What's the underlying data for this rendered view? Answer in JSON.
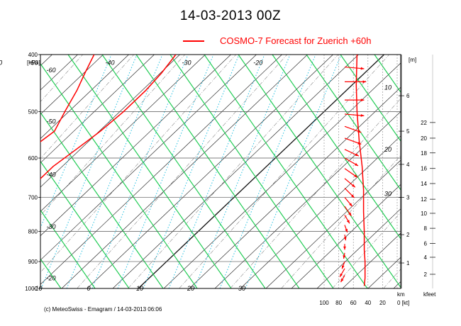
{
  "title": "14-03-2013  00Z",
  "legend": {
    "label": "COSMO-7 Forecast for Zuerich   +60h",
    "color": "#ff0000"
  },
  "footer": "(c) MeteoSwiss - Emagram  /  14-03-2013  06:06",
  "chart_data": {
    "type": "line",
    "title": "14-03-2013  00Z",
    "ylabel": "[hPa]",
    "yscale": "log",
    "ylim": [
      1000,
      400
    ],
    "pressure_ticks": [
      "400",
      "500",
      "600",
      "700",
      "800",
      "900",
      "1000"
    ],
    "pressure_values": [
      400,
      500,
      600,
      700,
      800,
      900,
      1000
    ],
    "height_unit": "[m]",
    "height_ticks_m": [
      {
        "p": 905,
        "label": "1"
      },
      {
        "p": 810,
        "label": "2"
      },
      {
        "p": 700,
        "label": "3"
      },
      {
        "p": 615,
        "label": "4"
      },
      {
        "p": 540,
        "label": "5"
      },
      {
        "p": 470,
        "label": "6"
      }
    ],
    "kfeet_unit": "kfeet",
    "kfeet_ticks": [
      {
        "p": 946,
        "label": "2"
      },
      {
        "p": 885,
        "label": "4"
      },
      {
        "p": 838,
        "label": "6"
      },
      {
        "p": 790,
        "label": "8"
      },
      {
        "p": 745,
        "label": "10"
      },
      {
        "p": 705,
        "label": "12"
      },
      {
        "p": 663,
        "label": "14"
      },
      {
        "p": 625,
        "label": "16"
      },
      {
        "p": 588,
        "label": "18"
      },
      {
        "p": 555,
        "label": "20"
      },
      {
        "p": 522,
        "label": "22"
      }
    ],
    "wind_speed_ticks": [
      "100",
      "80",
      "60",
      "40",
      "20",
      "0 [kt]"
    ],
    "wind_speed_values": [
      100,
      80,
      60,
      40,
      20,
      0
    ],
    "wind_axis_label": "km",
    "isotherm_labels": [
      {
        "label": "-60",
        "p": 413,
        "t": -74
      },
      {
        "label": "-50",
        "p": 413,
        "t": -67
      },
      {
        "label": "-40",
        "p": 413,
        "t": -52
      },
      {
        "label": "-30",
        "p": 413,
        "t": -37
      },
      {
        "label": "-20",
        "p": 413,
        "t": -23
      }
    ],
    "bottom_iso_labels": [
      {
        "label": "-10",
        "p": 1000,
        "t": -10
      },
      {
        "label": "0",
        "p": 1000,
        "t": 0
      },
      {
        "label": "10",
        "p": 1000,
        "t": 10
      },
      {
        "label": "20",
        "p": 1000,
        "t": 20
      },
      {
        "label": "30",
        "p": 1000,
        "t": 30
      }
    ],
    "left_iso_labels": [
      {
        "label": "-60",
        "p": 425,
        "t": -76
      },
      {
        "label": "-50",
        "p": 520,
        "t": -75
      },
      {
        "label": "-40",
        "p": 640,
        "t": -74
      },
      {
        "label": "-30",
        "p": 785,
        "t": -73
      },
      {
        "label": "-20",
        "p": 960,
        "t": -72
      }
    ],
    "mixing_ratio_labels": [
      {
        "label": "10",
        "p": 455,
        "t": -9
      },
      {
        "label": "20",
        "p": 580,
        "t": -7
      },
      {
        "label": "30",
        "p": 690,
        "t": -6
      }
    ],
    "series": [
      {
        "name": "temperature",
        "color": "#ff0000",
        "points": [
          [
            -38,
            400
          ],
          [
            -37,
            430
          ],
          [
            -36.5,
            460
          ],
          [
            -36.5,
            500
          ],
          [
            -37,
            540
          ],
          [
            -38,
            580
          ],
          [
            -39,
            620
          ],
          [
            -39,
            650
          ],
          [
            -38.5,
            700
          ],
          [
            -38,
            750
          ],
          [
            -37.5,
            800
          ],
          [
            -37,
            860
          ],
          [
            -36,
            880
          ],
          [
            -35,
            900
          ],
          [
            -36.5,
            920
          ],
          [
            -36,
            935
          ],
          [
            -35,
            945
          ]
        ]
      },
      {
        "name": "dewpoint",
        "color": "#ff0000",
        "points": [
          [
            -54,
            400
          ],
          [
            -52,
            430
          ],
          [
            -50,
            460
          ],
          [
            -48,
            500
          ],
          [
            -46,
            540
          ],
          [
            -47,
            580
          ],
          [
            -51,
            620
          ],
          [
            -58,
            660
          ],
          [
            -64,
            700
          ],
          [
            -68,
            740
          ],
          [
            -69,
            780
          ],
          [
            -68,
            820
          ],
          [
            -65,
            860
          ],
          [
            -60,
            890
          ],
          [
            -58,
            910
          ],
          [
            -52,
            920
          ],
          [
            -50,
            940
          ],
          [
            -48,
            945
          ]
        ]
      }
    ],
    "wind_profile": [
      [
        55,
        400
      ],
      [
        56,
        450
      ],
      [
        55,
        500
      ],
      [
        52,
        560
      ],
      [
        48,
        620
      ],
      [
        46,
        680
      ],
      [
        46,
        740
      ],
      [
        45,
        800
      ],
      [
        45,
        860
      ],
      [
        44,
        900
      ],
      [
        44,
        960
      ],
      [
        45,
        990
      ]
    ],
    "wind_barbs": [
      {
        "p": 420,
        "dir": 265,
        "kt": 50
      },
      {
        "p": 445,
        "dir": 270,
        "kt": 55
      },
      {
        "p": 478,
        "dir": 270,
        "kt": 50
      },
      {
        "p": 505,
        "dir": 265,
        "kt": 50
      },
      {
        "p": 530,
        "dir": 250,
        "kt": 45
      },
      {
        "p": 555,
        "dir": 250,
        "kt": 45
      },
      {
        "p": 580,
        "dir": 245,
        "kt": 40
      },
      {
        "p": 600,
        "dir": 240,
        "kt": 40
      },
      {
        "p": 625,
        "dir": 235,
        "kt": 40
      },
      {
        "p": 650,
        "dir": 230,
        "kt": 35
      },
      {
        "p": 675,
        "dir": 225,
        "kt": 35
      },
      {
        "p": 700,
        "dir": 220,
        "kt": 30
      },
      {
        "p": 725,
        "dir": 215,
        "kt": 30
      },
      {
        "p": 750,
        "dir": 210,
        "kt": 25
      },
      {
        "p": 780,
        "dir": 200,
        "kt": 20
      },
      {
        "p": 810,
        "dir": 190,
        "kt": 15
      },
      {
        "p": 840,
        "dir": 180,
        "kt": 15
      },
      {
        "p": 870,
        "dir": 170,
        "kt": 15
      },
      {
        "p": 900,
        "dir": 160,
        "kt": 20
      },
      {
        "p": 925,
        "dir": 150,
        "kt": 25
      },
      {
        "p": 950,
        "dir": 150,
        "kt": 20
      }
    ],
    "grid": true
  }
}
